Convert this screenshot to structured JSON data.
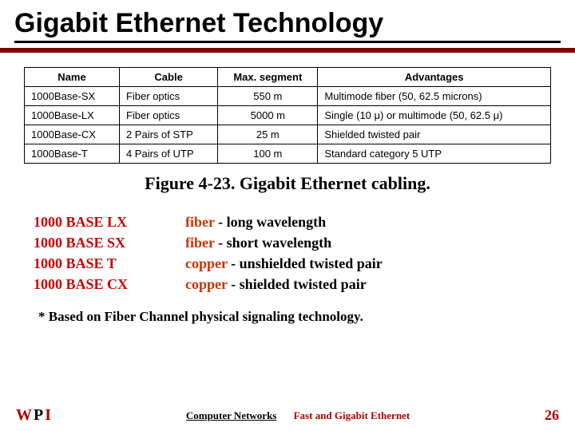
{
  "title": "Gigabit Ethernet Technology",
  "table": {
    "columns": [
      "Name",
      "Cable",
      "Max. segment",
      "Advantages"
    ],
    "rows": [
      [
        "1000Base-SX",
        "Fiber optics",
        "550 m",
        "Multimode fiber (50, 62.5 microns)"
      ],
      [
        "1000Base-LX",
        "Fiber optics",
        "5000 m",
        "Single (10 μ) or multimode (50, 62.5 μ)"
      ],
      [
        "1000Base-CX",
        "2 Pairs of STP",
        "25 m",
        "Shielded twisted pair"
      ],
      [
        "1000Base-T",
        "4 Pairs of UTP",
        "100 m",
        "Standard category 5 UTP"
      ]
    ],
    "col_align": [
      "left",
      "left",
      "center",
      "left"
    ]
  },
  "figure_caption": "Figure 4-23. Gigabit Ethernet cabling.",
  "variants": [
    {
      "name": "1000 BASE LX",
      "media": "fiber",
      "dash": "-",
      "desc": "long wavelength"
    },
    {
      "name": "1000 BASE SX",
      "media": "fiber",
      "dash": "-",
      "desc": "short wavelength"
    },
    {
      "name": "1000 BASE T",
      "media": "copper",
      "dash": " -",
      "desc": "unshielded twisted pair"
    },
    {
      "name": "1000 BASE CX",
      "media": "copper",
      "dash": " -",
      "desc": "shielded twisted pair"
    }
  ],
  "footnote": "*  Based on Fiber Channel physical signaling technology.",
  "footer": {
    "logo_w": "W",
    "logo_p": "P",
    "logo_i": "I",
    "course": "Computer Networks",
    "topic": "Fast and Gigabit Ethernet",
    "page": "26"
  },
  "colors": {
    "accent": "#800000",
    "red_text": "#cc0000",
    "media_text": "#cc3300"
  }
}
